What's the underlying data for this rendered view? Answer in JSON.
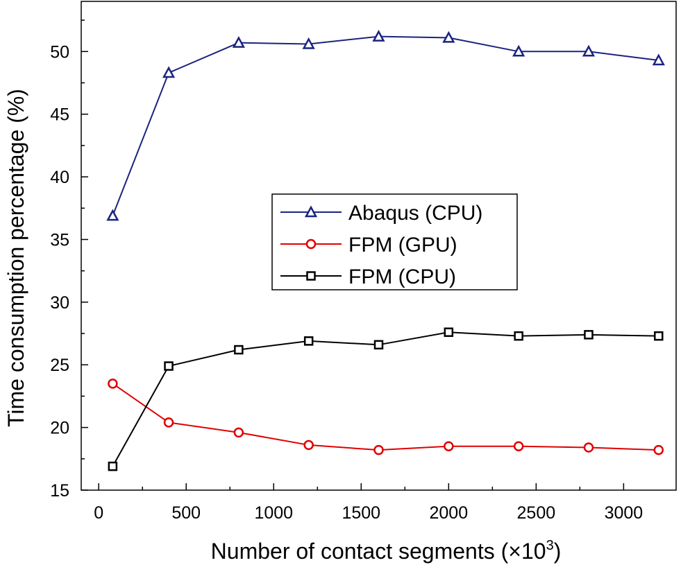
{
  "chart_data": {
    "type": "line",
    "title": "",
    "xlabel": "Number of contact segments (×10",
    "xlabel_exponent": "3",
    "xlabel_suffix": ")",
    "ylabel": "Time consumption percentage (%)",
    "xlim": [
      -100,
      3300
    ],
    "ylim": [
      15,
      54
    ],
    "xticks": [
      0,
      500,
      1000,
      1500,
      2000,
      2500,
      3000
    ],
    "yticks": [
      15,
      20,
      25,
      30,
      35,
      40,
      45,
      50
    ],
    "grid": false,
    "legend_position": "center",
    "x": [
      80,
      400,
      800,
      1200,
      1600,
      2000,
      2400,
      2800,
      3200
    ],
    "series": [
      {
        "name": "Abaqus (CPU)",
        "color": "#1a237e",
        "marker": "triangle",
        "values": [
          36.9,
          48.3,
          50.7,
          50.6,
          51.2,
          51.1,
          50.0,
          50.0,
          49.3
        ]
      },
      {
        "name": "FPM (GPU)",
        "color": "#e00000",
        "marker": "circle",
        "values": [
          23.5,
          20.4,
          19.6,
          18.6,
          18.2,
          18.5,
          18.5,
          18.4,
          18.2
        ]
      },
      {
        "name": "FPM (CPU)",
        "color": "#000000",
        "marker": "square",
        "values": [
          16.9,
          24.9,
          26.2,
          26.9,
          26.6,
          27.6,
          27.3,
          27.4,
          27.3
        ]
      }
    ]
  }
}
